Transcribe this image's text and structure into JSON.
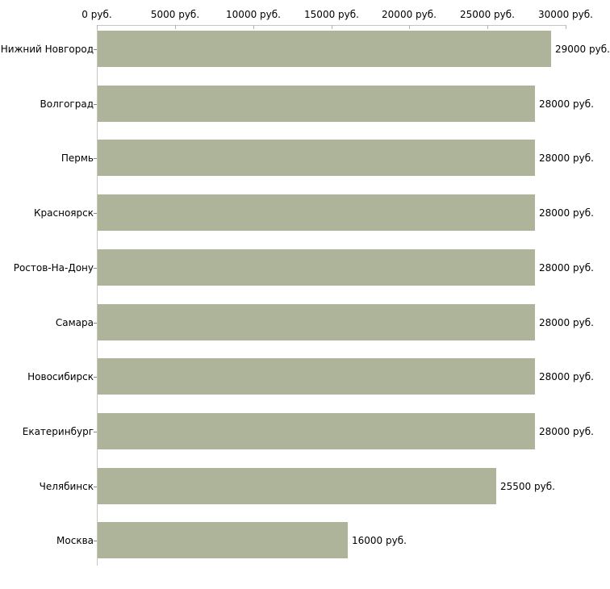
{
  "chart_data": {
    "type": "bar",
    "orientation": "horizontal",
    "title": "",
    "xlabel": "",
    "ylabel": "",
    "unit": "руб.",
    "categories": [
      "Нижний Новгород",
      "Волгоград",
      "Пермь",
      "Красноярск",
      "Ростов-На-Дону",
      "Самара",
      "Новосибирск",
      "Екатеринбург",
      "Челябинск",
      "Москва"
    ],
    "values": [
      29000,
      28000,
      28000,
      28000,
      28000,
      28000,
      28000,
      28000,
      25500,
      16000
    ],
    "value_labels": [
      "29000 руб.",
      "28000 руб.",
      "28000 руб.",
      "28000 руб.",
      "28000 руб.",
      "28000 руб.",
      "28000 руб.",
      "28000 руб.",
      "25500 руб.",
      "16000 руб."
    ],
    "x_ticks": {
      "values": [
        0,
        5000,
        10000,
        15000,
        20000,
        25000,
        30000
      ],
      "labels": [
        "0 руб.",
        "5000 руб.",
        "10000 руб.",
        "15000 руб.",
        "20000 руб.",
        "25000 руб.",
        "30000 руб."
      ]
    },
    "xlim": [
      0,
      30000
    ],
    "grid": false,
    "legend": "none",
    "colors": {
      "bar": "#aeb49a",
      "axis_h": "#c6c6c0",
      "axis_v": "#c6c6c0",
      "xtick_mark": "#b5b5a0",
      "cat_tick": "#88887e",
      "text": "#000000",
      "background": "#ffffff"
    }
  }
}
